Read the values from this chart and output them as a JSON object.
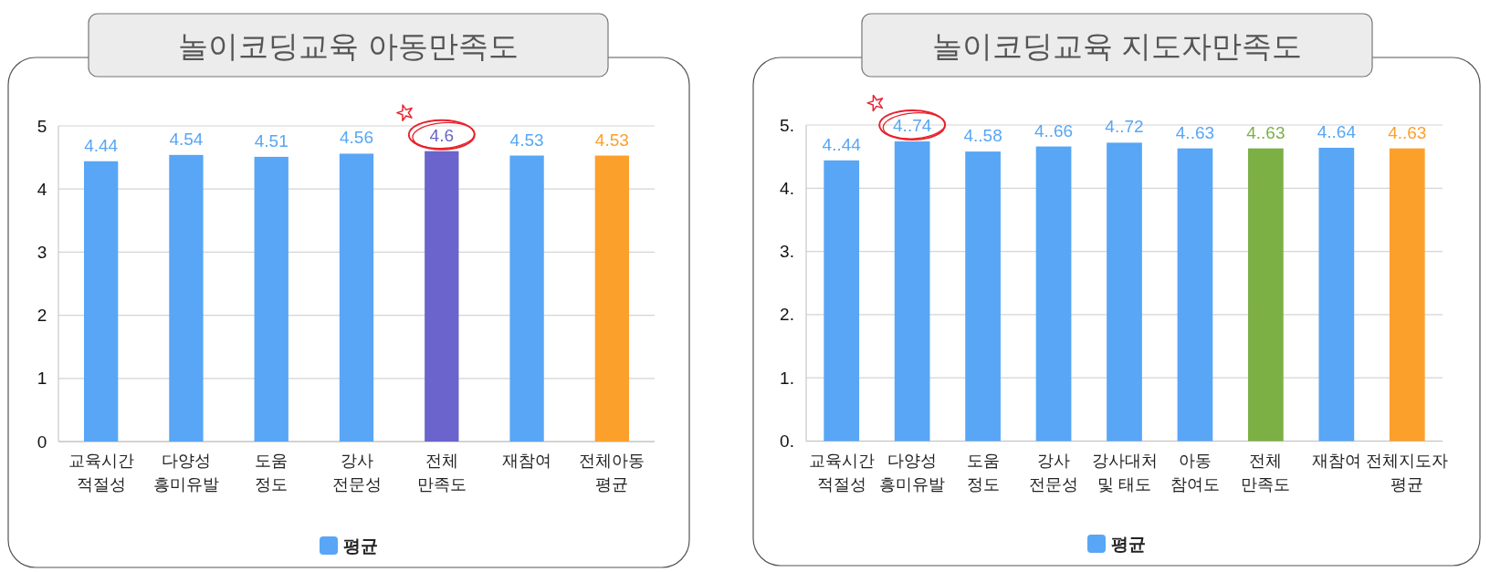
{
  "chart_data": [
    {
      "type": "bar",
      "title": "놀이코딩교육 아동만족도",
      "categories": [
        "교육시간\n적절성",
        "다양성\n흥미유발",
        "도움\n정도",
        "강사\n전문성",
        "전체\n만족도",
        "재참여",
        "전체아동\n평균"
      ],
      "series": [
        {
          "name": "평균",
          "color": "#58a6f5",
          "colors": [
            "#58a6f5",
            "#58a6f5",
            "#58a6f5",
            "#58a6f5",
            "#6a64cc",
            "#58a6f5",
            "#fca02c"
          ],
          "values": [
            4.44,
            4.54,
            4.51,
            4.56,
            4.6,
            4.53,
            4.53
          ]
        }
      ],
      "ylim": [
        0,
        5
      ],
      "yticks": [
        0,
        1,
        2,
        3,
        4,
        5
      ],
      "grid": "y",
      "legend": "bottom",
      "data_labels": true
    },
    {
      "type": "bar",
      "title": "놀이코딩교육 지도자만족도",
      "categories": [
        "교육시간\n적절성",
        "다양성\n흥미유발",
        "도움\n정도",
        "강사\n전문성",
        "강사대처\n및 태도",
        "아동\n참여도",
        "전체\n만족도",
        "재참여",
        "전체지도자\n평균"
      ],
      "series": [
        {
          "name": "평균",
          "color": "#58a6f5",
          "colors": [
            "#58a6f5",
            "#58a6f5",
            "#58a6f5",
            "#58a6f5",
            "#58a6f5",
            "#58a6f5",
            "#7cb045",
            "#58a6f5",
            "#fca02c"
          ],
          "values": [
            4.44,
            4.74,
            4.58,
            4.66,
            4.72,
            4.63,
            4.63,
            4.64,
            4.63
          ],
          "value_labels": [
            "4..44",
            "4..74",
            "4..58",
            "4..66",
            "4..72",
            "4..63",
            "4..63",
            "4..64",
            "4..63"
          ]
        }
      ],
      "ylim": [
        0,
        5
      ],
      "yticks": [
        {
          "value": 0,
          "label": "0."
        },
        {
          "value": 1,
          "label": "1."
        },
        {
          "value": 2,
          "label": "2."
        },
        {
          "value": 3,
          "label": "3."
        },
        {
          "value": 4,
          "label": "4."
        },
        {
          "value": 5,
          "label": "5."
        }
      ],
      "grid": "y",
      "legend": "bottom"
    }
  ]
}
